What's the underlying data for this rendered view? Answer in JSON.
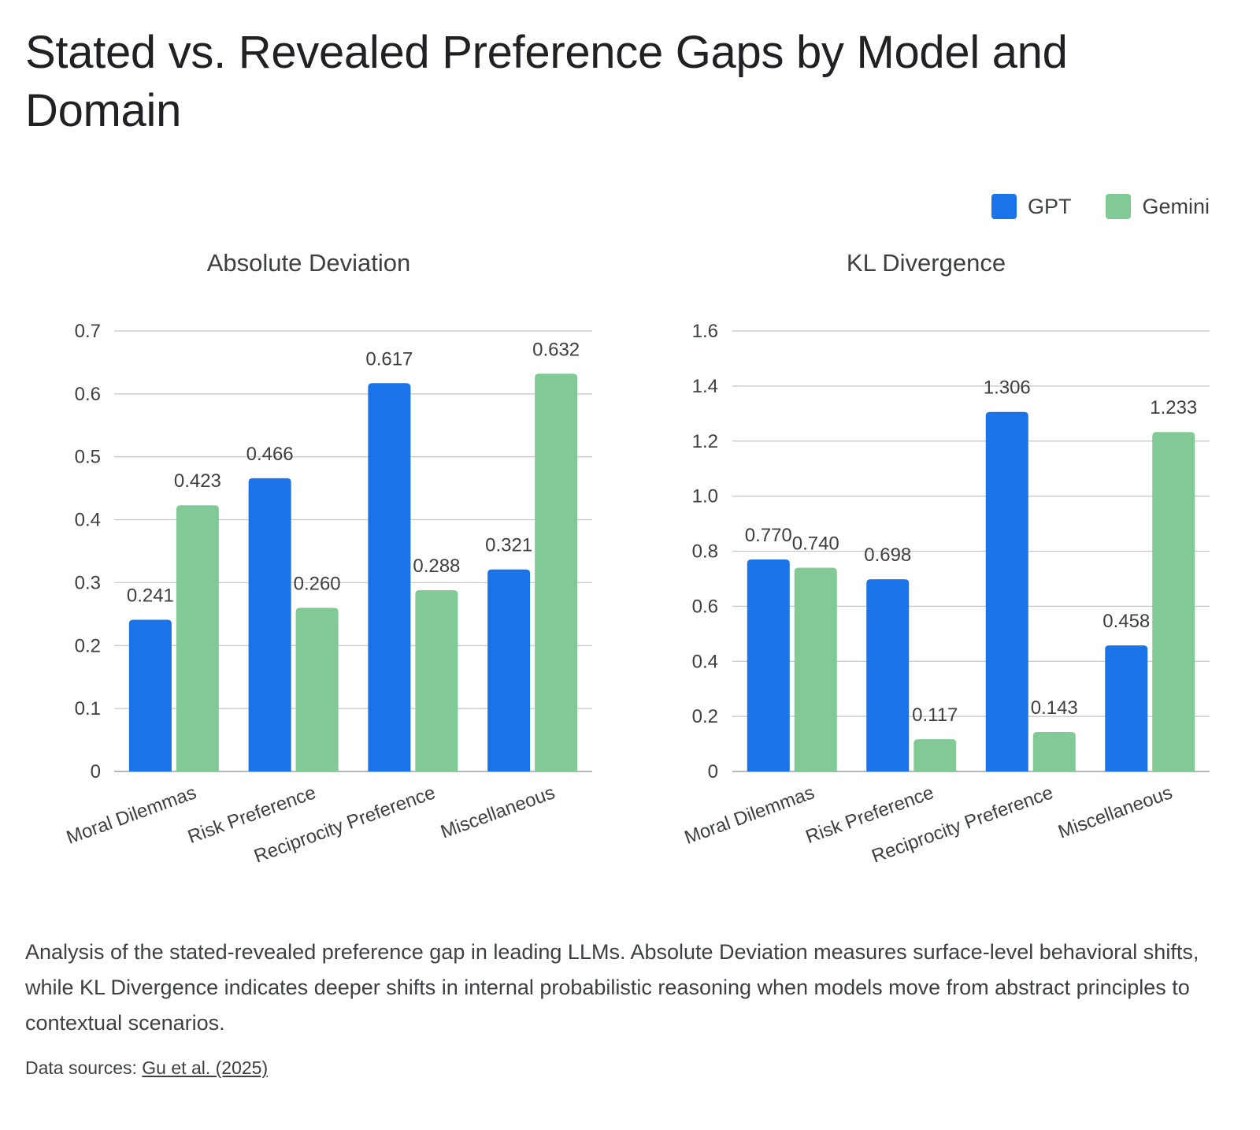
{
  "title": "Stated vs. Revealed Preference Gaps by Model and Domain",
  "legend": [
    {
      "name": "GPT",
      "color": "#1a73e8"
    },
    {
      "name": "Gemini",
      "color": "#81c995"
    }
  ],
  "chart_data": [
    {
      "type": "bar",
      "title": "Absolute Deviation",
      "categories": [
        "Moral Dilemmas",
        "Risk Preference",
        "Reciprocity Preference",
        "Miscellaneous"
      ],
      "series": [
        {
          "name": "GPT",
          "values": [
            0.241,
            0.466,
            0.617,
            0.321
          ],
          "labels": [
            "0.241",
            "0.466",
            "0.617",
            "0.321"
          ]
        },
        {
          "name": "Gemini",
          "values": [
            0.423,
            0.26,
            0.288,
            0.632
          ],
          "labels": [
            "0.423",
            "0.260",
            "0.288",
            "0.632"
          ]
        }
      ],
      "yticks": [
        "0",
        "0.1",
        "0.2",
        "0.3",
        "0.4",
        "0.5",
        "0.6",
        "0.7"
      ],
      "ylim": [
        0,
        0.7
      ],
      "grid": true,
      "legend_position": "top-right"
    },
    {
      "type": "bar",
      "title": "KL Divergence",
      "categories": [
        "Moral Dilemmas",
        "Risk Preference",
        "Reciprocity Preference",
        "Miscellaneous"
      ],
      "series": [
        {
          "name": "GPT",
          "values": [
            0.77,
            0.698,
            1.306,
            0.458
          ],
          "labels": [
            "0.770",
            "0.698",
            "1.306",
            "0.458"
          ]
        },
        {
          "name": "Gemini",
          "values": [
            0.74,
            0.117,
            0.143,
            1.233
          ],
          "labels": [
            "0.740",
            "0.117",
            "0.143",
            "1.233"
          ]
        }
      ],
      "yticks": [
        "0",
        "0.2",
        "0.4",
        "0.6",
        "0.8",
        "1.0",
        "1.2",
        "1.4",
        "1.6"
      ],
      "ylim": [
        0,
        1.6
      ],
      "grid": true,
      "legend_position": "top-right"
    }
  ],
  "caption": "Analysis of the stated-revealed preference gap in leading LLMs. Absolute Deviation measures surface-level behavioral shifts, while KL Divergence indicates deeper shifts in internal probabilistic reasoning when models move from abstract principles to contextual scenarios.",
  "source": {
    "prefix": "Data sources: ",
    "link_text": "Gu et al. (2025)"
  }
}
